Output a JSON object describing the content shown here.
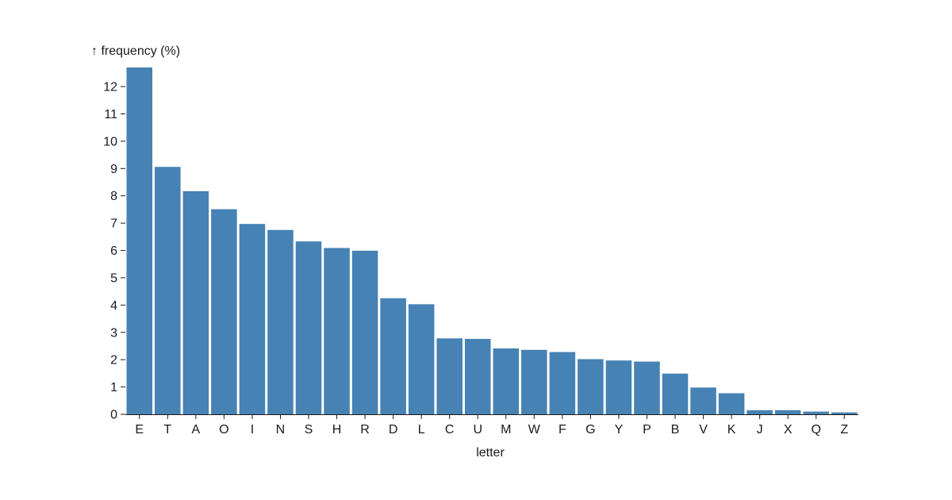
{
  "chart_data": {
    "type": "bar",
    "ylabel": "↑ frequency (%)",
    "xlabel": "letter",
    "ylim": [
      0,
      12.7
    ],
    "yticks": [
      0,
      1,
      2,
      3,
      4,
      5,
      6,
      7,
      8,
      9,
      10,
      11,
      12
    ],
    "grid": false,
    "categories": [
      "E",
      "T",
      "A",
      "O",
      "I",
      "N",
      "S",
      "H",
      "R",
      "D",
      "L",
      "C",
      "U",
      "M",
      "W",
      "F",
      "G",
      "Y",
      "P",
      "B",
      "V",
      "K",
      "J",
      "X",
      "Q",
      "Z"
    ],
    "values": [
      12.7,
      9.06,
      8.17,
      7.51,
      6.97,
      6.75,
      6.33,
      6.09,
      5.99,
      4.25,
      4.03,
      2.78,
      2.76,
      2.41,
      2.36,
      2.28,
      2.02,
      1.97,
      1.93,
      1.49,
      0.98,
      0.77,
      0.15,
      0.15,
      0.1,
      0.07
    ],
    "color": "#4682b4"
  }
}
